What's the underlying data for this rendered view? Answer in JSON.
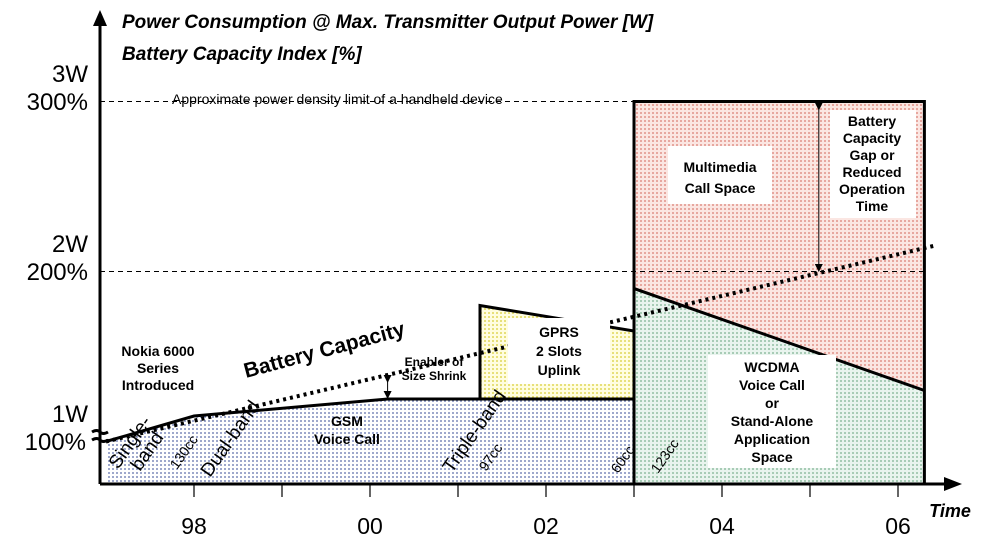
{
  "chart_data": {
    "type": "area",
    "title_lines": [
      "Power Consumption @ Max. Transmitter Output Power [W]",
      "Battery Capacity Index [%]"
    ],
    "xlabel": "Time",
    "x_ticks": [
      "98",
      "00",
      "02",
      "04",
      "06"
    ],
    "y_ticks_power": [
      "1W",
      "2W",
      "3W"
    ],
    "y_ticks_capacity": [
      "100%",
      "200%",
      "300%"
    ],
    "limit_text": "Approximate power density limit of a handheld device",
    "battery_capacity_label": "Battery Capacity",
    "battery_capacity_line": {
      "x": [
        1997,
        2006.4
      ],
      "y": [
        100,
        215
      ]
    },
    "gsm_envelope": {
      "x": [
        1997,
        1998,
        2000.2,
        2003
      ],
      "y": [
        100,
        115,
        125,
        125
      ]
    },
    "gprs_region": {
      "x": [
        2001.25,
        2003,
        2003,
        2001.25
      ],
      "y": [
        125,
        125,
        165,
        180
      ]
    },
    "wcdma_line": {
      "x": [
        2003,
        2006.3
      ],
      "y": [
        190,
        130
      ]
    },
    "multimedia_region": {
      "x": [
        2003,
        2006.3
      ],
      "y": [
        300,
        300
      ]
    },
    "labels": {
      "nokia": [
        "Nokia 6000",
        "Series",
        "Introduced"
      ],
      "enabler": [
        "Enabler of",
        "Size Shrink"
      ],
      "gsm": [
        "GSM",
        "Voice Call"
      ],
      "gprs": [
        "GPRS",
        "2 Slots",
        "Uplink"
      ],
      "multimedia": [
        "Multimedia",
        "Call Space"
      ],
      "wcdma": [
        "WCDMA",
        "Voice Call",
        "or",
        "Stand-Alone",
        "Application",
        "Space"
      ],
      "gap": [
        "Battery",
        "Capacity",
        "Gap or",
        "Reduced",
        "Operation",
        "Time"
      ],
      "single_band": [
        "Single-",
        "band"
      ],
      "dual_band": "Dual-band",
      "triple_band": "Triple-band",
      "cc_130": "130cc",
      "cc_97": "97cc",
      "cc_60": "60cc",
      "cc_123": "123cc"
    },
    "colors": {
      "gsm_fill": "#dde0ee",
      "gprs_fill": "#fbf7b8",
      "wcdma_fill": "#cfe6d8",
      "multimedia_fill": "#f5d2cc"
    }
  }
}
